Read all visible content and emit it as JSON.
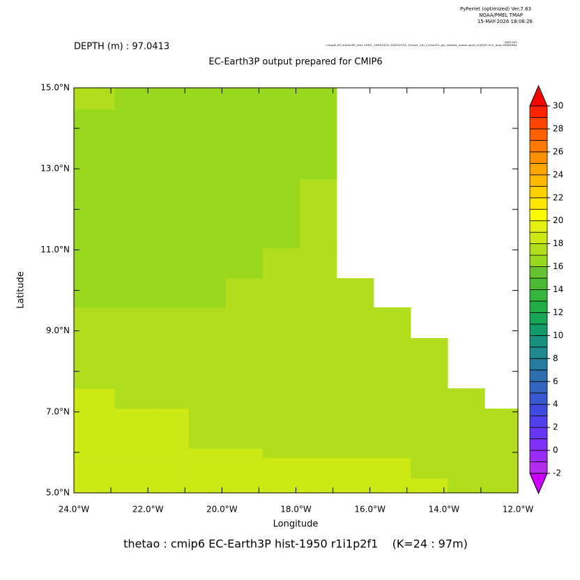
{
  "header": {
    "software": "PyFerret (optimized) Ver.7.63",
    "lab": "NOAA/PMEL TMAP",
    "timestamp": "15-MAY-2026 18:08:26",
    "dataset_label": "DATA SET:",
    "dataset": "cmip6_EC-Earth3P_hist-1950_19500101-20051231_Omon_1m_r1i1p2f1_gn_thetao_mean.grid_nl2025-hr1_orig.GENERAL"
  },
  "chart_data": {
    "type": "heatmap",
    "title": "EC-Earth3P output prepared for CMIP6",
    "subtitle": "DEPTH (m) : 97.0413",
    "x_label": "Longitude",
    "y_label": "Latitude",
    "footer": "thetao : cmip6 EC-Earth3P hist-1950 r1i1p2f1    (K=24 : 97m)",
    "xlim": [
      -24,
      -12
    ],
    "ylim": [
      5,
      15
    ],
    "xticks": [
      {
        "value": -24,
        "label": "24.0°W"
      },
      {
        "value": -22,
        "label": "22.0°W"
      },
      {
        "value": -20,
        "label": "20.0°W"
      },
      {
        "value": -18,
        "label": "18.0°W"
      },
      {
        "value": -16,
        "label": "16.0°W"
      },
      {
        "value": -14,
        "label": "14.0°W"
      },
      {
        "value": -12,
        "label": "12.0°W"
      }
    ],
    "xminorticks": [
      -23,
      -21,
      -19,
      -17,
      -15,
      -13
    ],
    "yticks": [
      {
        "value": 5,
        "label": "5.0°N"
      },
      {
        "value": 7,
        "label": "7.0°N"
      },
      {
        "value": 9,
        "label": "9.0°N"
      },
      {
        "value": 11,
        "label": "11.0°N"
      },
      {
        "value": 13,
        "label": "13.0°N"
      },
      {
        "value": 15,
        "label": "15.0°N"
      }
    ],
    "yminorticks": [
      6,
      8,
      10,
      12,
      14
    ],
    "x_edges": [
      -24,
      -22.9,
      -21.9,
      -20.9,
      -19.9,
      -18.9,
      -17.9,
      -16.9,
      -15.9,
      -14.9,
      -13.9,
      -12.9,
      -12
    ],
    "y_edges": [
      5,
      5.36,
      5.86,
      6.1,
      7.08,
      7.58,
      8.82,
      9.58,
      10.3,
      11.04,
      12.75,
      14.47,
      15
    ],
    "values": [
      [
        18.5,
        18.5,
        18.5,
        18.5,
        18.5,
        18.5,
        18.5,
        18.5,
        18.5,
        18.5,
        17.5,
        17.5
      ],
      [
        18.5,
        18.5,
        18.5,
        18.5,
        18.5,
        18.5,
        18.5,
        18.5,
        18.5,
        17.5,
        17.5,
        17.5
      ],
      [
        18.5,
        18.5,
        18.5,
        18.5,
        18.5,
        17.5,
        17.5,
        17.5,
        17.5,
        17.5,
        17.5,
        17.5
      ],
      [
        18.5,
        18.5,
        18.5,
        17.5,
        17.5,
        17.5,
        17.5,
        17.5,
        17.5,
        17.5,
        17.5,
        17.5
      ],
      [
        18.5,
        17.5,
        17.5,
        17.5,
        17.5,
        17.5,
        17.5,
        17.5,
        17.5,
        17.5,
        17.5,
        null
      ],
      [
        17.5,
        17.5,
        17.5,
        17.5,
        17.5,
        17.5,
        17.5,
        17.5,
        17.5,
        17.5,
        null,
        null
      ],
      [
        17.5,
        17.5,
        17.5,
        17.5,
        17.5,
        17.5,
        17.5,
        17.5,
        17.5,
        null,
        null,
        null
      ],
      [
        16.5,
        16.5,
        16.5,
        16.5,
        17.5,
        17.5,
        17.5,
        17.5,
        null,
        null,
        null,
        null
      ],
      [
        16.5,
        16.5,
        16.5,
        16.5,
        16.5,
        17.5,
        17.5,
        null,
        null,
        null,
        null,
        null
      ],
      [
        16.5,
        16.5,
        16.5,
        16.5,
        16.5,
        16.5,
        17.5,
        null,
        null,
        null,
        null,
        null
      ],
      [
        16.5,
        16.5,
        16.5,
        16.5,
        16.5,
        16.5,
        16.5,
        null,
        null,
        null,
        null,
        null
      ],
      [
        17.5,
        16.5,
        16.5,
        16.5,
        16.5,
        16.5,
        16.5,
        null,
        null,
        null,
        null,
        null
      ]
    ],
    "colorbar": {
      "levels": [
        -2,
        -1,
        0,
        1,
        2,
        3,
        4,
        5,
        6,
        7,
        8,
        9,
        10,
        11,
        12,
        13,
        14,
        15,
        16,
        17,
        18,
        19,
        20,
        21,
        22,
        23,
        24,
        25,
        26,
        27,
        28,
        29,
        30
      ],
      "colors": [
        "#b42cf0",
        "#9a2cf5",
        "#7f30f8",
        "#6638f5",
        "#5040ee",
        "#404ce0",
        "#3958d0",
        "#3264c0",
        "#2c70b0",
        "#267ca0",
        "#1f8890",
        "#17927e",
        "#139c6a",
        "#17a656",
        "#22ae44",
        "#36b53a",
        "#4cbb34",
        "#66c22e",
        "#99d81e",
        "#b0de1c",
        "#cce815",
        "#e6f00e",
        "#fbfb00",
        "#ffe600",
        "#ffd000",
        "#ffba00",
        "#ffa500",
        "#ff9000",
        "#ff7800",
        "#ff6000",
        "#ff4400",
        "#ff2200"
      ],
      "under_color": "#cc00ff",
      "over_color": "#ff0000",
      "ticks": [
        -2,
        0,
        2,
        4,
        6,
        8,
        10,
        12,
        14,
        16,
        18,
        20,
        22,
        24,
        26,
        28,
        30
      ]
    }
  }
}
